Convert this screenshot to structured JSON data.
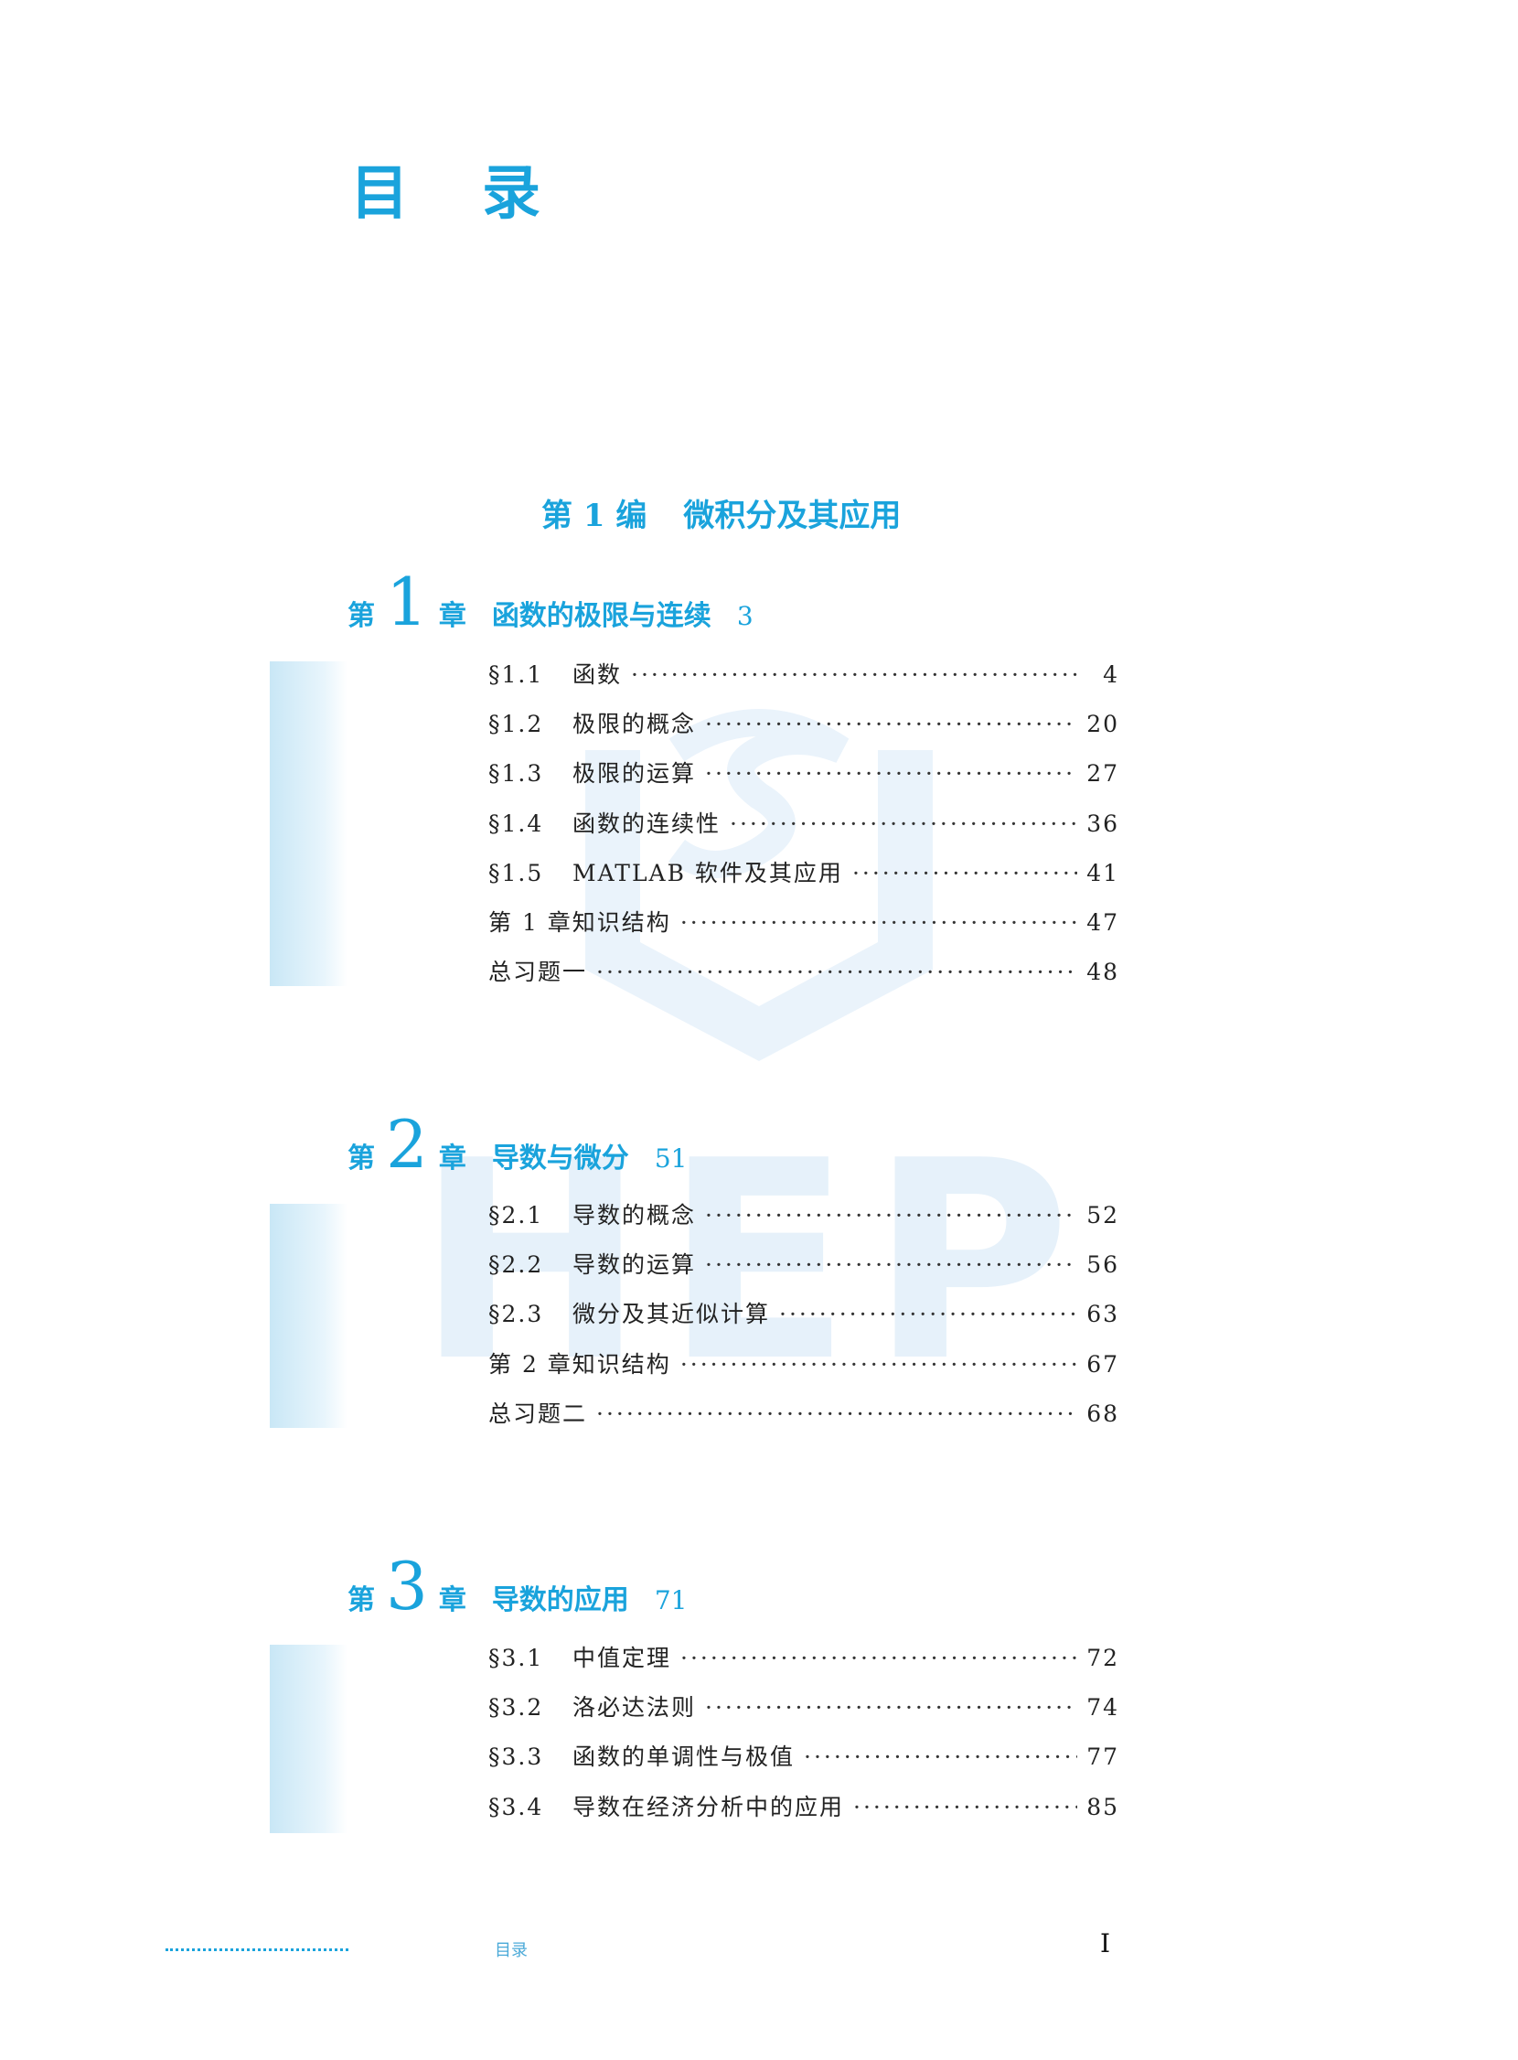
{
  "title": [
    "目",
    "录"
  ],
  "part": {
    "label": "第 1 编",
    "title": "微积分及其应用"
  },
  "watermark": "HEP",
  "colors": {
    "accent": "#1aa3dc",
    "band": "#c9e7f6"
  },
  "chapters": [
    {
      "di": "第",
      "num": "1",
      "zhang": "章",
      "title": "函数的极限与连续",
      "page": "3",
      "entries": [
        {
          "sec": "§1.1",
          "title": "函数",
          "page": "4"
        },
        {
          "sec": "§1.2",
          "title": "极限的概念",
          "page": "20"
        },
        {
          "sec": "§1.3",
          "title": "极限的运算",
          "page": "27"
        },
        {
          "sec": "§1.4",
          "title": "函数的连续性",
          "page": "36"
        },
        {
          "sec": "§1.5",
          "title": "MATLAB 软件及其应用",
          "page": "41"
        },
        {
          "sec": "",
          "title": "第 1 章知识结构",
          "page": "47"
        },
        {
          "sec": "",
          "title": "总习题一",
          "page": "48"
        }
      ]
    },
    {
      "di": "第",
      "num": "2",
      "zhang": "章",
      "title": "导数与微分",
      "page": "51",
      "entries": [
        {
          "sec": "§2.1",
          "title": "导数的概念",
          "page": "52"
        },
        {
          "sec": "§2.2",
          "title": "导数的运算",
          "page": "56"
        },
        {
          "sec": "§2.3",
          "title": "微分及其近似计算",
          "page": "63"
        },
        {
          "sec": "",
          "title": "第 2 章知识结构",
          "page": "67"
        },
        {
          "sec": "",
          "title": "总习题二",
          "page": "68"
        }
      ]
    },
    {
      "di": "第",
      "num": "3",
      "zhang": "章",
      "title": "导数的应用",
      "page": "71",
      "entries": [
        {
          "sec": "§3.1",
          "title": "中值定理",
          "page": "72"
        },
        {
          "sec": "§3.2",
          "title": "洛必达法则",
          "page": "74"
        },
        {
          "sec": "§3.3",
          "title": "函数的单调性与极值",
          "page": "77"
        },
        {
          "sec": "§3.4",
          "title": "导数在经济分析中的应用",
          "page": "85"
        }
      ]
    }
  ],
  "footer": {
    "label": "目录",
    "page": "I"
  }
}
